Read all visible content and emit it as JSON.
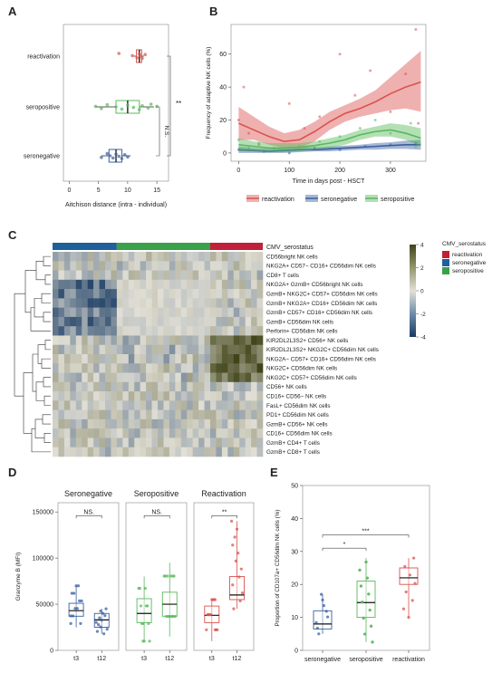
{
  "panels": {
    "A": "A",
    "B": "B",
    "C": "C",
    "D": "D",
    "E": "E"
  },
  "colors": {
    "reactivation": "#d9534f",
    "seronegative": "#3a5fa0",
    "seropositive": "#59b85b",
    "annotation_bar_neg": "#1f5f9a",
    "annotation_bar_pos": "#3aa04a",
    "annotation_bar_react": "#c0203a"
  },
  "chart_data": [
    {
      "panel": "A",
      "type": "boxplot",
      "orientation": "horizontal",
      "categories": [
        "reactivation",
        "seropositive",
        "seronegative"
      ],
      "xlabel": "Aitchison distance (intra - individual)",
      "xticks": [
        0,
        5,
        10,
        15
      ],
      "xlim": [
        -1,
        17
      ],
      "boxes": [
        {
          "name": "reactivation",
          "q1": 11.5,
          "median": 12.0,
          "q3": 12.4,
          "whislo": 11.0,
          "whishi": 12.8,
          "points": [
            8.5,
            10.8,
            11.6,
            12.0,
            12.2,
            12.5,
            13.0
          ]
        },
        {
          "name": "seropositive",
          "q1": 8.0,
          "median": 10.0,
          "q3": 12.0,
          "whislo": 4.5,
          "whishi": 14.5,
          "points": [
            4.5,
            5.5,
            6.5,
            8.0,
            9.0,
            10.0,
            11.0,
            12.0,
            12.5,
            13.5,
            14.0,
            15.0
          ]
        },
        {
          "name": "seronegative",
          "q1": 6.8,
          "median": 8.0,
          "q3": 9.0,
          "whislo": 5.5,
          "whishi": 10.5,
          "points": [
            5.5,
            6.5,
            7.0,
            7.5,
            8.0,
            8.5,
            9.0,
            9.5,
            10.0
          ]
        }
      ],
      "annotations": [
        {
          "text": "**",
          "between": [
            "reactivation",
            "seronegative"
          ]
        },
        {
          "text": "N.S.",
          "between": [
            "seropositive",
            "seronegative"
          ]
        }
      ]
    },
    {
      "panel": "B",
      "type": "line",
      "xlabel": "Time in days post - HSCT",
      "ylabel": "Frequency of adaptive NK cells (%)",
      "xticks": [
        0,
        100,
        200,
        300
      ],
      "yticks": [
        0,
        20,
        40,
        60
      ],
      "xlim": [
        -15,
        370
      ],
      "ylim": [
        -5,
        78
      ],
      "series": [
        {
          "name": "reactivation",
          "x": [
            0,
            30,
            60,
            90,
            120,
            150,
            180,
            210,
            240,
            270,
            300,
            330,
            360
          ],
          "y": [
            18,
            14,
            10,
            7,
            8,
            13,
            19,
            24,
            27,
            31,
            36,
            40,
            43
          ],
          "ci_lo": [
            8,
            8,
            5,
            3,
            3,
            7,
            14,
            19,
            22,
            24,
            26,
            27,
            25
          ],
          "ci_hi": [
            28,
            22,
            16,
            12,
            14,
            19,
            25,
            29,
            33,
            38,
            46,
            54,
            62
          ],
          "points": [
            [
              0,
              20
            ],
            [
              10,
              40
            ],
            [
              20,
              12
            ],
            [
              40,
              5
            ],
            [
              70,
              3
            ],
            [
              100,
              30
            ],
            [
              130,
              15
            ],
            [
              160,
              22
            ],
            [
              200,
              60
            ],
            [
              230,
              35
            ],
            [
              260,
              50
            ],
            [
              300,
              25
            ],
            [
              330,
              48
            ],
            [
              350,
              75
            ],
            [
              355,
              18
            ]
          ]
        },
        {
          "name": "seronegative",
          "x": [
            0,
            30,
            60,
            90,
            120,
            150,
            180,
            210,
            240,
            270,
            300,
            330,
            360
          ],
          "y": [
            2,
            1.5,
            1,
            1.5,
            2,
            2,
            2.5,
            3,
            3.5,
            4,
            4.5,
            5,
            5
          ],
          "ci_lo": [
            0,
            0,
            0,
            0,
            0.5,
            1,
            1,
            1.5,
            2,
            2,
            2.5,
            2.5,
            2
          ],
          "ci_hi": [
            4,
            3,
            2.5,
            3,
            3.5,
            3.5,
            4,
            4.5,
            5,
            6,
            6.5,
            7.5,
            8
          ],
          "points": [
            [
              0,
              2
            ],
            [
              50,
              1
            ],
            [
              100,
              0
            ],
            [
              150,
              3
            ],
            [
              200,
              2
            ],
            [
              250,
              4
            ],
            [
              300,
              5
            ],
            [
              350,
              6
            ]
          ]
        },
        {
          "name": "seropositive",
          "x": [
            0,
            30,
            60,
            90,
            120,
            150,
            180,
            210,
            240,
            270,
            300,
            330,
            360
          ],
          "y": [
            5,
            4,
            3,
            3,
            3.5,
            4.5,
            6,
            8,
            11,
            13,
            14,
            12,
            9
          ],
          "ci_lo": [
            1,
            1,
            0.5,
            0.5,
            1,
            2,
            3,
            5,
            8,
            10,
            10,
            8,
            4
          ],
          "ci_hi": [
            9,
            7,
            6,
            6,
            6,
            7,
            9,
            11,
            14,
            16,
            18,
            17,
            15
          ],
          "points": [
            [
              0,
              8
            ],
            [
              20,
              3
            ],
            [
              40,
              6
            ],
            [
              80,
              2
            ],
            [
              120,
              4
            ],
            [
              160,
              7
            ],
            [
              200,
              10
            ],
            [
              240,
              15
            ],
            [
              270,
              20
            ],
            [
              300,
              12
            ],
            [
              340,
              18
            ],
            [
              350,
              4
            ]
          ]
        }
      ],
      "legend": [
        "reactivation",
        "seronegative",
        "seropositive"
      ]
    },
    {
      "panel": "C",
      "type": "heatmap",
      "annotation_label": "CMV_serostatus",
      "rows": [
        "CD56bright NK cells",
        "NKG2A+ CD57− CD16+ CD56dim NK cells",
        "CD8+ T cells",
        "NKG2A+ GzmB+ CD56bright NK cells",
        "GzmB+ NKG2C+ CD57+ CD56dim NK cells",
        "GzmB+ NKG2A+ CD16+ CD56dim NK cells",
        "GzmB+ CD57+ CD16+ CD56dim NK cells",
        "GzmB+ CD56dim NK cells",
        "Perforin+ CD56dim NK cells",
        "KIR2DL2L3S2+ CD56+ NK cells",
        "KIR2DL2L3S2+ NKG2C+ CD56dim NK cells",
        "NKG2A− CD57+ CD16+ CD56dim NK cells",
        "NKG2C+ CD56dim NK cells",
        "NKG2C+ CD57+ CD56dim NK cells",
        "CD56+ NK cells",
        "CD16+ CD56− NK cells",
        "FasL+ CD56dim NK cells",
        "PD1+ CD56dim NK cells",
        "GzmB+ CD56+ NK cells",
        "CD16+ CD56dim NK cells",
        "GzmB+ CD4+ T cells",
        "GzmB+ CD8+ T cells"
      ],
      "columns": {
        "seronegative": 11,
        "seropositive": 16,
        "reactivation": 9
      },
      "colorbar": {
        "ticks": [
          4,
          2,
          0,
          -2,
          -4
        ],
        "range": [
          -4,
          4
        ]
      },
      "legend_title": "CMV_serostatus",
      "legend": [
        "reactivation",
        "seronegative",
        "seropositive"
      ]
    },
    {
      "panel": "D",
      "type": "boxplot",
      "ylabel": "Granzyme B (MFI)",
      "yticks": [
        0,
        50000,
        100000,
        150000
      ],
      "ytick_labels": [
        "0",
        "50000",
        "100000",
        "150000"
      ],
      "ylim": [
        0,
        160000
      ],
      "facets": [
        {
          "title": "Seronegative",
          "categories": [
            "t3",
            "t12"
          ],
          "annotation": "NS.",
          "boxes": [
            {
              "q1": 37000,
              "median": 43000,
              "q3": 51000,
              "whislo": 25000,
              "whishi": 70000
            },
            {
              "q1": 25000,
              "median": 33000,
              "q3": 40000,
              "whislo": 18000,
              "whishi": 45000
            }
          ]
        },
        {
          "title": "Seropositive",
          "categories": [
            "t3",
            "t12"
          ],
          "annotation": "NS.",
          "boxes": [
            {
              "q1": 30000,
              "median": 40000,
              "q3": 56000,
              "whislo": 10000,
              "whishi": 80000
            },
            {
              "q1": 37000,
              "median": 50000,
              "q3": 63000,
              "whislo": 15000,
              "whishi": 95000
            }
          ]
        },
        {
          "title": "Reactivation",
          "categories": [
            "t3",
            "t12"
          ],
          "annotation": "**",
          "boxes": [
            {
              "q1": 30000,
              "median": 38000,
              "q3": 48000,
              "whislo": 10000,
              "whishi": 55000
            },
            {
              "q1": 55000,
              "median": 60000,
              "q3": 80000,
              "whislo": 45000,
              "whishi": 140000
            }
          ]
        }
      ]
    },
    {
      "panel": "E",
      "type": "boxplot",
      "ylabel": "Proportion of CD107a+ CD56dim NK cells (%)",
      "categories": [
        "seronegative",
        "seropositive",
        "reactivation"
      ],
      "yticks": [
        0,
        10,
        20,
        30,
        40,
        50
      ],
      "ylim": [
        0,
        50
      ],
      "boxes": [
        {
          "name": "seronegative",
          "q1": 6.5,
          "median": 8.0,
          "q3": 12.0,
          "whislo": 5.0,
          "whishi": 17.0
        },
        {
          "name": "seropositive",
          "q1": 10.0,
          "median": 14.5,
          "q3": 21.0,
          "whislo": 2.5,
          "whishi": 28.0
        },
        {
          "name": "reactivation",
          "q1": 20.0,
          "median": 22.0,
          "q3": 25.0,
          "whislo": 10.0,
          "whishi": 28.0
        }
      ],
      "annotations": [
        {
          "text": "*",
          "between": [
            "seronegative",
            "seropositive"
          ]
        },
        {
          "text": "***",
          "between": [
            "seronegative",
            "reactivation"
          ]
        }
      ]
    }
  ]
}
